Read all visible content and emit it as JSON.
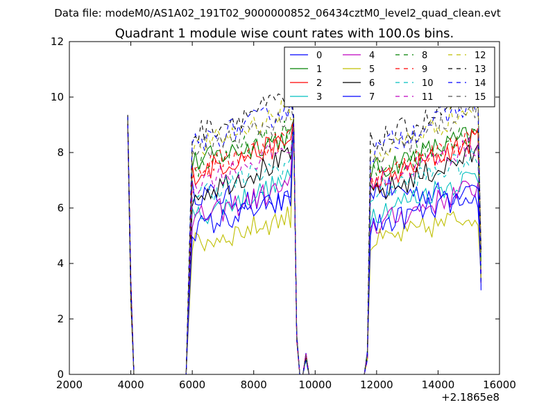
{
  "chart_data": {
    "type": "line",
    "suptitle": "Data file: modeM0/AS1A02_191T02_9000000852_06434cztM0_level2_quad_clean.evt",
    "title": "Quadrant 1 module wise count rates with 100.0s bins.",
    "xlabel": "",
    "ylabel": "",
    "x_offset_label": "+2.1865e8",
    "xlim": [
      2000,
      16000
    ],
    "ylim": [
      0,
      12
    ],
    "x_ticks": [
      2000,
      4000,
      6000,
      8000,
      10000,
      12000,
      14000,
      16000
    ],
    "x_tick_labels": [
      "2000",
      "4000",
      "6000",
      "8000",
      "10000",
      "12000",
      "14000",
      "16000"
    ],
    "y_ticks": [
      0,
      2,
      4,
      6,
      8,
      10,
      12
    ],
    "y_tick_labels": [
      "0",
      "2",
      "4",
      "6",
      "8",
      "10",
      "12"
    ],
    "grid": false,
    "legend_position": "top-right",
    "legend_columns": 4,
    "x_description": "time in 100 s bins; active segments 3800-4100, 5800-9500, 9700-9900, 11700-15400",
    "series": [
      {
        "name": "0",
        "color": "#0000ff",
        "dash": "solid",
        "seg1": [
          6.6,
          6.0
        ],
        "seg2": [
          6.7,
          6.4
        ],
        "peak": 9.3
      },
      {
        "name": "1",
        "color": "#008000",
        "dash": "solid",
        "seg1": [
          7.6,
          8.6
        ],
        "seg2": [
          7.3,
          8.7
        ],
        "peak": 9.2
      },
      {
        "name": "2",
        "color": "#ff0000",
        "dash": "solid",
        "seg1": [
          7.2,
          8.4
        ],
        "seg2": [
          6.8,
          8.5
        ],
        "peak": 9.2
      },
      {
        "name": "3",
        "color": "#00bfbf",
        "dash": "solid",
        "seg1": [
          5.6,
          7.0
        ],
        "seg2": [
          5.8,
          7.2
        ],
        "peak": 9.0
      },
      {
        "name": "4",
        "color": "#bf00bf",
        "dash": "solid",
        "seg1": [
          5.5,
          6.8
        ],
        "seg2": [
          5.3,
          6.8
        ],
        "peak": 9.0
      },
      {
        "name": "5",
        "color": "#bfbf00",
        "dash": "solid",
        "seg1": [
          4.6,
          5.7
        ],
        "seg2": [
          4.7,
          5.8
        ],
        "peak": 9.3
      },
      {
        "name": "6",
        "color": "#000000",
        "dash": "solid",
        "seg1": [
          6.4,
          7.8
        ],
        "seg2": [
          6.4,
          8.0
        ],
        "peak": 9.2
      },
      {
        "name": "7",
        "color": "#0000ff",
        "dash": "solid",
        "seg1": [
          5.2,
          6.3
        ],
        "seg2": [
          5.3,
          6.5
        ],
        "peak": 9.1
      },
      {
        "name": "8",
        "color": "#008000",
        "dash": "dashed",
        "seg1": [
          7.4,
          8.8
        ],
        "seg2": [
          7.2,
          8.9
        ],
        "peak": 9.2
      },
      {
        "name": "9",
        "color": "#ff0000",
        "dash": "dashed",
        "seg1": [
          7.3,
          8.6
        ],
        "seg2": [
          7.0,
          8.6
        ],
        "peak": 9.1
      },
      {
        "name": "10",
        "color": "#00bfbf",
        "dash": "dashed",
        "seg1": [
          6.4,
          7.6
        ],
        "seg2": [
          6.5,
          7.8
        ],
        "peak": 9.0
      },
      {
        "name": "11",
        "color": "#bf00bf",
        "dash": "dashed",
        "seg1": [
          6.8,
          8.2
        ],
        "seg2": [
          6.9,
          8.3
        ],
        "peak": 9.0
      },
      {
        "name": "12",
        "color": "#bfbf00",
        "dash": "dashed",
        "seg1": [
          8.0,
          9.6
        ],
        "seg2": [
          7.8,
          9.7
        ],
        "peak": 9.2
      },
      {
        "name": "13",
        "color": "#000000",
        "dash": "dashed",
        "seg1": [
          8.6,
          10.0
        ],
        "seg2": [
          8.3,
          10.0
        ],
        "peak": 9.3
      },
      {
        "name": "14",
        "color": "#0000ff",
        "dash": "dashed",
        "seg1": [
          8.2,
          9.6
        ],
        "seg2": [
          8.0,
          9.9
        ],
        "peak": 9.2
      },
      {
        "name": "15",
        "color": "#555555",
        "dash": "dashed",
        "seg1": [
          7.9,
          9.3
        ],
        "seg2": [
          7.6,
          9.7
        ],
        "peak": 9.1
      }
    ]
  }
}
